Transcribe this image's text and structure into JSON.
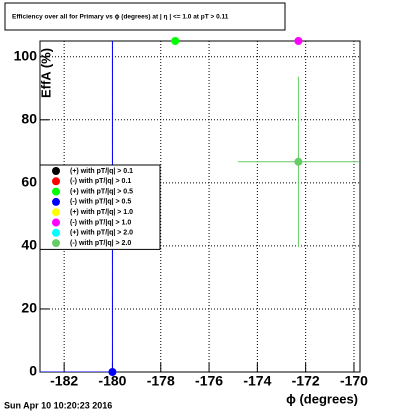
{
  "chart_data": {
    "type": "scatter",
    "title": "Efficiency over all for Primary vs ϕ (degrees) at | η | <= 1.0 at pT > 0.11",
    "x_label": "ϕ (degrees)",
    "y_label": "EffA (%)",
    "footer": "Sun Apr 10 10:20:23 2016",
    "xlim": [
      -183,
      -169.75
    ],
    "ylim": [
      0,
      105
    ],
    "xticks": [
      -182,
      -180,
      -178,
      -176,
      -174,
      -172,
      -170
    ],
    "yticks": [
      0,
      20,
      40,
      60,
      80,
      100
    ],
    "grid": true,
    "legend": "left",
    "series": [
      {
        "name": "(+) with pT/|q| > 0.1",
        "color": "#000000",
        "x": [],
        "values": [],
        "xerr": [],
        "yerr": []
      },
      {
        "name": "(-) with pT/|q| > 0.1",
        "color": "#ff0000",
        "x": [],
        "values": [],
        "xerr": [],
        "yerr": []
      },
      {
        "name": "(+) with pT/|q| > 0.5",
        "color": "#00ff00",
        "x": [
          -177.4
        ],
        "values": [
          105
        ],
        "xerr": [
          [
            0,
            0
          ]
        ],
        "yerr": [
          [
            0,
            0
          ]
        ]
      },
      {
        "name": "(-) with pT/|q| > 0.5",
        "color": "#0000ff",
        "x": [
          -180
        ],
        "values": [
          0
        ],
        "xerr": [
          [
            3,
            0
          ]
        ],
        "yerr": [
          [
            0,
            110
          ]
        ]
      },
      {
        "name": "(+) with pT/|q| > 1.0",
        "color": "#ffff00",
        "x": [],
        "values": [],
        "xerr": [],
        "yerr": []
      },
      {
        "name": "(-) with pT/|q| > 1.0",
        "color": "#ff00ff",
        "x": [
          -172.3
        ],
        "values": [
          105
        ],
        "xerr": [
          [
            0,
            0
          ]
        ],
        "yerr": [
          [
            0,
            0
          ]
        ]
      },
      {
        "name": "(+) with pT/|q| > 2.0",
        "color": "#00ffff",
        "x": [],
        "values": [],
        "xerr": [],
        "yerr": []
      },
      {
        "name": "(-) with pT/|q| > 2.0",
        "color": "#66cc66",
        "x": [
          -172.3
        ],
        "values": [
          66.7
        ],
        "xerr": [
          [
            2.5,
            2.5
          ]
        ],
        "yerr": [
          [
            27,
            27
          ]
        ]
      }
    ]
  }
}
